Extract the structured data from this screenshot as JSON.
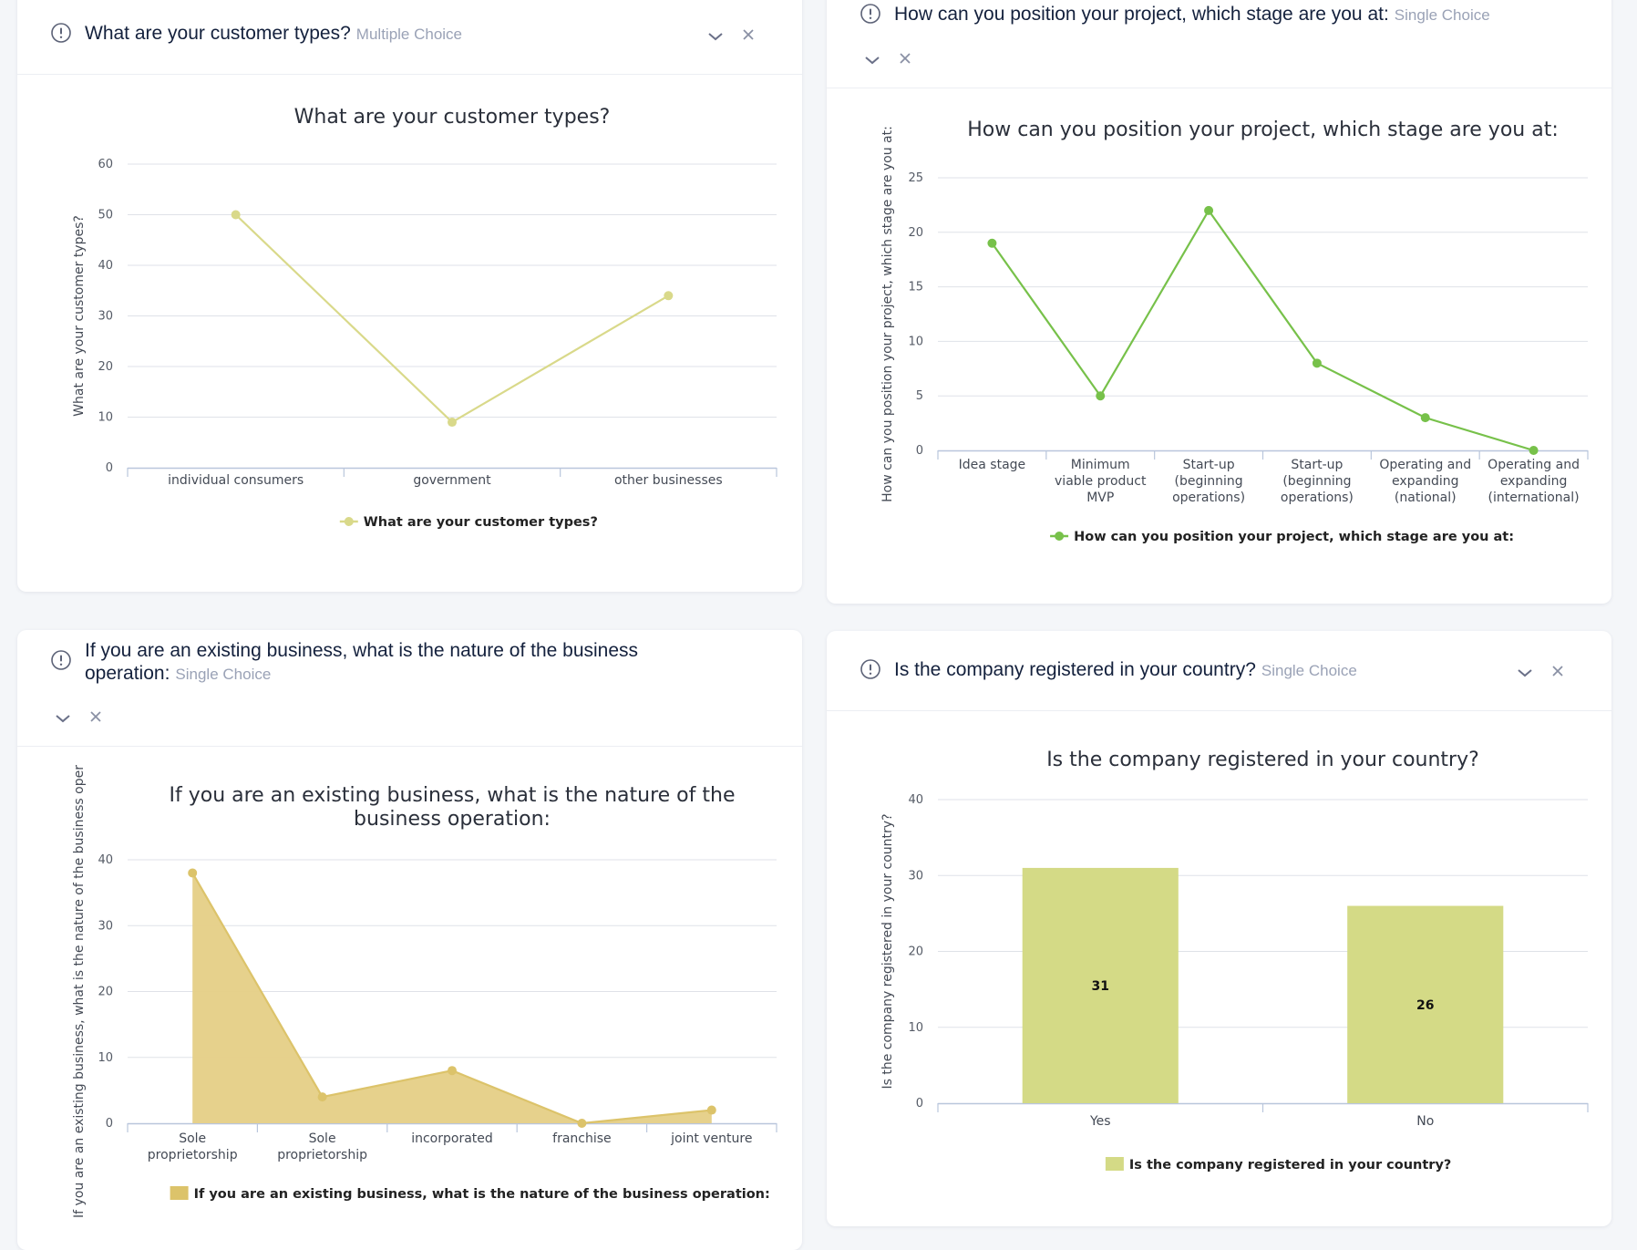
{
  "cards": [
    {
      "title": "What are your customer types?",
      "type_label": "Multiple Choice",
      "icons": {
        "info": "info-circle-icon",
        "collapse": "chevron-down-icon",
        "remove": "close-icon"
      },
      "chart_data": {
        "type": "line",
        "title": "What are your customer types?",
        "ylabel": "What are your customer types?",
        "categories": [
          "individual consumers",
          "government",
          "other businesses"
        ],
        "series": [
          {
            "name": "What are your customer types?",
            "values": [
              50,
              9,
              34
            ]
          }
        ],
        "ylim": [
          0,
          60
        ],
        "yticks": [
          0,
          10,
          20,
          30,
          40,
          50,
          60
        ],
        "color": "#d9d98a",
        "grid": true,
        "legend_position": "bottom"
      }
    },
    {
      "title": "How can you position your project, which stage are you at:",
      "type_label": "Single Choice",
      "icons": {
        "info": "info-circle-icon",
        "collapse": "chevron-down-icon",
        "remove": "close-icon"
      },
      "chart_data": {
        "type": "line",
        "title": "How can you position your project, which stage are you at:",
        "ylabel": "How can you position your project, which stage are you at:",
        "categories": [
          [
            "Idea stage"
          ],
          [
            "Minimum",
            "viable product",
            "MVP"
          ],
          [
            "Start-up",
            "(beginning",
            "operations)"
          ],
          [
            "Start-up",
            "(beginning",
            "operations)"
          ],
          [
            "Operating and",
            "expanding",
            "(national)"
          ],
          [
            "Operating and",
            "expanding",
            "(international)"
          ]
        ],
        "series": [
          {
            "name": "How can you position your project, which stage are you at:",
            "values": [
              19,
              5,
              22,
              8,
              3,
              0
            ]
          }
        ],
        "ylim": [
          0,
          25
        ],
        "yticks": [
          0,
          5,
          10,
          15,
          20,
          25
        ],
        "color": "#77c14a",
        "grid": true,
        "legend_position": "bottom"
      }
    },
    {
      "title_lines": [
        "If you are an existing business, what is the nature of the business",
        "operation:"
      ],
      "type_label": "Single Choice",
      "icons": {
        "info": "info-circle-icon",
        "collapse": "chevron-down-icon",
        "remove": "close-icon"
      },
      "chart_data": {
        "type": "area",
        "title_lines": [
          "If you are an existing business, what is the nature of the",
          "business operation:"
        ],
        "ylabel": "If you are an existing business, what is the nature of the business oper",
        "categories": [
          [
            "Sole",
            "proprietorship"
          ],
          [
            "Sole",
            "proprietorship"
          ],
          [
            "incorporated"
          ],
          [
            "franchise"
          ],
          [
            "joint venture"
          ]
        ],
        "series": [
          {
            "name": "If you are an existing business, what is the nature of the business operation:",
            "values": [
              38,
              4,
              8,
              0,
              2
            ]
          }
        ],
        "ylim": [
          0,
          40
        ],
        "yticks": [
          0,
          10,
          20,
          30,
          40
        ],
        "color": "#e5cf86",
        "line_color": "#dcc36a",
        "grid": true,
        "legend_position": "bottom"
      }
    },
    {
      "title": "Is the company registered in your country?",
      "type_label": "Single Choice",
      "icons": {
        "info": "info-circle-icon",
        "collapse": "chevron-down-icon",
        "remove": "close-icon"
      },
      "chart_data": {
        "type": "bar",
        "title": "Is the company registered in your country?",
        "ylabel": "Is the company registered in your country?",
        "categories": [
          "Yes",
          "No"
        ],
        "series": [
          {
            "name": "Is the company registered in your country?",
            "values": [
              31,
              26
            ]
          }
        ],
        "ylim": [
          0,
          40
        ],
        "yticks": [
          0,
          10,
          20,
          30,
          40
        ],
        "color": "#d4da86",
        "grid": true,
        "legend_position": "bottom",
        "data_labels": [
          "31",
          "26"
        ]
      }
    }
  ]
}
